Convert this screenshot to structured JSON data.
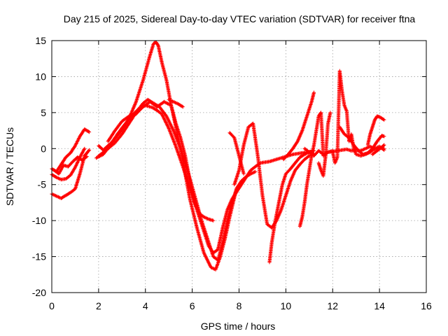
{
  "chart_data": {
    "type": "scatter",
    "title": "Day 215 of 2025, Sidereal Day-to-day VTEC variation (SDTVAR) for receiver ftna",
    "xlabel": "GPS time / hours",
    "ylabel": "SDTVAR / TECUs",
    "xlim": [
      0,
      16
    ],
    "ylim": [
      -20,
      15
    ],
    "xticks": [
      0,
      2,
      4,
      6,
      8,
      10,
      12,
      14,
      16
    ],
    "yticks": [
      -20,
      -15,
      -10,
      -5,
      0,
      5,
      10,
      15
    ],
    "xtick_labels": [
      "0",
      "2",
      "4",
      "6",
      "8",
      "10",
      "12",
      "14",
      "16"
    ],
    "ytick_labels": [
      "-20",
      "-15",
      "-10",
      "-5",
      "0",
      "5",
      "10",
      "15"
    ],
    "grid": true,
    "marker": "+",
    "color": "#ff0000",
    "series": [
      {
        "x": [
          0.0,
          0.2,
          0.4,
          0.6,
          0.8,
          1.0,
          1.2,
          1.4,
          1.6
        ],
        "y": [
          -6.3,
          -6.6,
          -6.9,
          -6.5,
          -6.1,
          -5.6,
          -3.5,
          -1.0,
          -0.2
        ]
      },
      {
        "x": [
          0.0,
          0.2,
          0.4,
          0.6,
          0.8,
          1.0,
          1.2,
          1.4
        ],
        "y": [
          -3.6,
          -4.0,
          -4.3,
          -4.2,
          -3.7,
          -2.6,
          -1.2,
          0.0
        ]
      },
      {
        "x": [
          0.0,
          0.2,
          0.4,
          0.6,
          0.8,
          1.0,
          1.2,
          1.4,
          1.6
        ],
        "y": [
          -2.8,
          -3.2,
          -2.2,
          -1.2,
          -0.6,
          0.4,
          1.7,
          2.7,
          2.3
        ]
      },
      {
        "x": [
          0.1,
          0.3,
          0.5,
          0.7,
          0.9,
          1.1,
          1.3,
          1.5
        ],
        "y": [
          -3.0,
          -3.5,
          -2.3,
          -2.5,
          -1.8,
          -1.2,
          -1.6,
          -1.1
        ]
      },
      {
        "x": [
          2.0,
          2.2,
          2.6,
          3.0,
          3.3,
          3.6,
          3.9,
          4.2,
          4.35,
          4.45,
          4.55,
          4.7,
          4.9,
          5.1,
          5.3,
          5.5,
          5.7,
          5.9,
          6.2,
          6.5,
          6.8,
          7.0,
          7.2,
          7.4,
          7.6,
          7.8,
          7.9
        ],
        "y": [
          0.4,
          -0.2,
          1.0,
          2.6,
          4.2,
          6.5,
          9.5,
          13.0,
          14.6,
          14.8,
          14.3,
          12.0,
          9.5,
          6.0,
          3.0,
          0.0,
          -3.5,
          -7.0,
          -11.0,
          -14.5,
          -16.5,
          -16.8,
          -15.0,
          -12.5,
          -9.5,
          -6.8,
          -5.5
        ]
      },
      {
        "x": [
          2.0,
          2.3,
          2.7,
          3.0,
          3.3,
          3.6,
          3.9,
          4.1,
          4.3,
          4.6,
          4.9,
          5.2,
          5.5,
          5.8,
          6.1,
          6.4,
          6.7,
          6.9,
          7.1,
          7.3,
          7.5,
          7.7,
          7.9,
          8.1,
          8.3,
          8.5,
          8.7
        ],
        "y": [
          -1.0,
          -0.3,
          0.8,
          2.0,
          3.5,
          5.0,
          6.3,
          6.8,
          6.4,
          5.8,
          4.5,
          2.5,
          0.0,
          -3.0,
          -6.5,
          -10.0,
          -13.0,
          -15.0,
          -15.5,
          -13.0,
          -10.0,
          -7.5,
          -5.5,
          -4.5,
          -3.9,
          -3.5,
          -3.2
        ]
      },
      {
        "x": [
          1.9,
          2.2,
          2.5,
          2.8,
          3.1,
          3.4,
          3.7,
          4.0,
          4.3,
          4.5,
          4.7,
          5.0,
          5.3,
          5.6,
          5.9,
          6.2,
          6.5,
          6.7,
          6.9,
          7.1,
          7.3,
          7.5,
          7.7,
          7.9,
          8.1,
          8.3,
          8.5,
          8.7,
          8.9,
          9.1,
          9.3,
          9.5,
          9.7,
          9.9,
          10.1,
          10.3,
          10.5,
          10.7,
          10.9,
          11.1
        ],
        "y": [
          -1.3,
          -0.8,
          0.5,
          2.0,
          3.3,
          4.5,
          5.5,
          6.0,
          5.7,
          5.3,
          4.8,
          2.8,
          0.3,
          -2.5,
          -5.5,
          -8.5,
          -11.5,
          -13.5,
          -14.5,
          -14.0,
          -11.0,
          -8.5,
          -7.0,
          -6.0,
          -5.0,
          -4.0,
          -3.0,
          -2.5,
          -2.0,
          -1.9,
          -1.8,
          -1.6,
          -1.4,
          -1.2,
          -1.0,
          -0.8,
          -0.7,
          -0.6,
          -0.5,
          -0.4
        ]
      },
      {
        "x": [
          2.4,
          2.7,
          3.0,
          3.3,
          3.6,
          3.9,
          4.2,
          4.5,
          4.8,
          5.1,
          5.3,
          5.5,
          5.7,
          5.9,
          6.1,
          6.3,
          6.5,
          6.7,
          6.9
        ],
        "y": [
          1.0,
          2.5,
          3.8,
          4.5,
          4.8,
          5.8,
          6.5,
          5.8,
          6.5,
          6.0,
          3.5,
          1.5,
          -1.0,
          -4.5,
          -7.5,
          -9.0,
          -9.5,
          -9.8,
          -10.0
        ]
      },
      {
        "x": [
          5.0,
          5.2,
          5.4,
          5.6
        ],
        "y": [
          6.8,
          6.5,
          6.2,
          5.8
        ]
      },
      {
        "x": [
          7.6,
          7.8,
          8.0,
          8.2
        ],
        "y": [
          2.2,
          1.5,
          -1.0,
          -3.5
        ]
      },
      {
        "x": [
          7.8,
          8.0,
          8.2,
          8.4,
          8.6,
          8.8,
          9.0,
          9.2,
          9.4,
          9.6,
          9.8,
          10.0,
          10.2,
          10.4,
          10.6,
          10.8,
          11.0,
          11.2
        ],
        "y": [
          -5.0,
          -3.0,
          0.5,
          3.0,
          3.5,
          -1.0,
          -6.5,
          -10.5,
          -11.0,
          -10.0,
          -8.5,
          -6.5,
          -4.5,
          -3.0,
          -2.2,
          -1.5,
          -1.0,
          -0.8
        ]
      },
      {
        "x": [
          9.3,
          9.4,
          9.55,
          9.7,
          9.85,
          10.0,
          10.2,
          10.4,
          10.6,
          10.8,
          11.0,
          11.2
        ],
        "y": [
          -15.8,
          -13.0,
          -10.0,
          -7.5,
          -5.0,
          -3.5,
          -2.8,
          -2.0,
          -1.2,
          -0.8,
          -0.5,
          -0.3
        ]
      },
      {
        "x": [
          9.9,
          10.1,
          10.3,
          10.5,
          10.7,
          10.9,
          11.1,
          11.2
        ],
        "y": [
          -1.5,
          -0.8,
          0.0,
          1.0,
          2.5,
          4.5,
          6.5,
          7.8
        ]
      },
      {
        "x": [
          10.6,
          10.7,
          10.8,
          10.9,
          11.0,
          11.1,
          11.2,
          11.3,
          11.4,
          11.5,
          11.6,
          11.8,
          12.0
        ],
        "y": [
          -10.8,
          -9.5,
          -7.5,
          -5.0,
          -3.0,
          -1.0,
          0.5,
          2.5,
          4.5,
          5.0,
          -1.0,
          -0.5,
          -0.3
        ]
      },
      {
        "x": [
          10.8,
          11.0,
          11.2,
          11.4,
          11.6,
          11.8,
          12.0,
          12.2,
          12.4,
          12.6,
          12.8,
          13.0,
          13.2,
          13.4,
          13.6,
          13.8,
          14.0,
          14.2
        ],
        "y": [
          0.0,
          -0.5,
          -1.0,
          -0.3,
          -0.8,
          -0.5,
          -0.4,
          -0.3,
          -0.2,
          -0.1,
          -0.3,
          -0.2,
          -0.3,
          0.0,
          0.3,
          -0.1,
          0.1,
          0.0
        ]
      },
      {
        "x": [
          11.4,
          11.5,
          11.6,
          11.7,
          11.8,
          11.9
        ],
        "y": [
          -2.0,
          -3.0,
          -3.8,
          -1.0,
          3.5,
          5.0
        ]
      },
      {
        "x": [
          12.0,
          12.1,
          12.2,
          12.3,
          12.4,
          12.5,
          12.6,
          12.7,
          12.8,
          12.9,
          13.0,
          13.2,
          13.4,
          13.6,
          13.8,
          14.0,
          14.2
        ],
        "y": [
          -0.5,
          -2.0,
          -1.2,
          10.8,
          8.0,
          6.0,
          5.2,
          1.0,
          2.0,
          0.0,
          -0.8,
          -1.0,
          -0.8,
          -0.5,
          0.0,
          0.3,
          -0.2
        ]
      },
      {
        "x": [
          12.3,
          12.5,
          12.7,
          12.9,
          13.1,
          13.3,
          13.5,
          13.7,
          13.9,
          14.1,
          14.2
        ],
        "y": [
          3.0,
          2.0,
          1.5,
          0.5,
          -0.3,
          -0.8,
          -0.6,
          0.0,
          1.0,
          1.8,
          1.7
        ]
      },
      {
        "x": [
          13.5,
          13.6,
          13.7,
          13.8,
          13.9,
          14.0,
          14.1,
          14.2
        ],
        "y": [
          0.5,
          2.0,
          3.0,
          4.0,
          4.5,
          4.4,
          4.2,
          4.0
        ]
      },
      {
        "x": [
          13.7,
          13.9,
          14.1,
          14.2
        ],
        "y": [
          -0.8,
          -0.3,
          0.2,
          0.5
        ]
      }
    ]
  }
}
